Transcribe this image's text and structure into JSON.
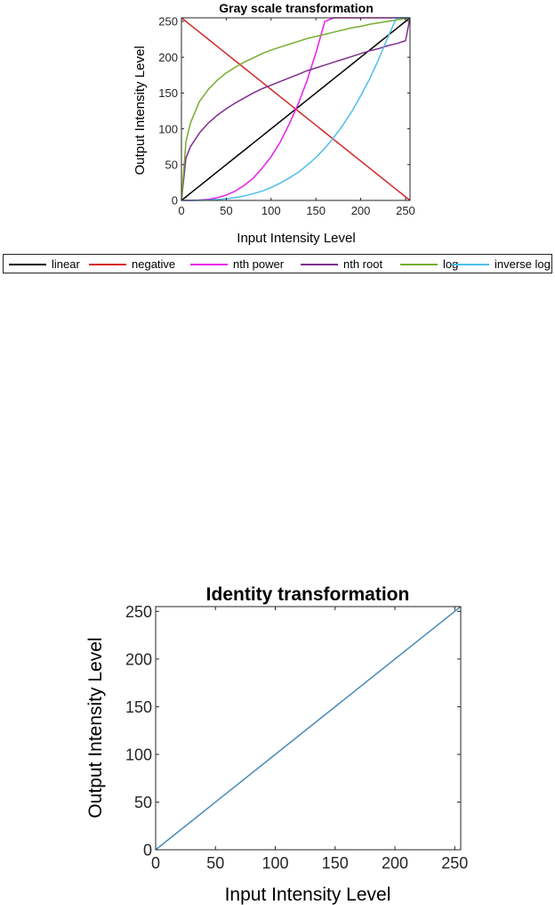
{
  "chart_data": [
    {
      "type": "line",
      "title": "Gray scale transformation",
      "xlabel": "Input Intensity Level",
      "ylabel": "Output Intensity Level",
      "xlim": [
        0,
        255
      ],
      "ylim": [
        0,
        255
      ],
      "xticks": [
        0,
        50,
        100,
        150,
        200,
        250
      ],
      "yticks": [
        0,
        50,
        100,
        150,
        200,
        250
      ],
      "grid": false,
      "legend_placement": "bottom-outside",
      "x": [
        0,
        5,
        10,
        20,
        30,
        40,
        50,
        60,
        70,
        80,
        90,
        100,
        110,
        120,
        130,
        140,
        150,
        160,
        170,
        180,
        190,
        200,
        210,
        220,
        230,
        240,
        250,
        255
      ],
      "series": [
        {
          "name": "linear",
          "color": "#000000",
          "values": [
            0,
            5,
            10,
            20,
            30,
            40,
            50,
            60,
            70,
            80,
            90,
            100,
            110,
            120,
            130,
            140,
            150,
            160,
            170,
            180,
            190,
            200,
            210,
            220,
            230,
            240,
            250,
            255
          ]
        },
        {
          "name": "negative",
          "color": "#d62728",
          "values": [
            255,
            250,
            245,
            235,
            225,
            215,
            205,
            195,
            185,
            175,
            165,
            155,
            145,
            135,
            125,
            115,
            105,
            95,
            85,
            75,
            65,
            55,
            45,
            35,
            25,
            15,
            5,
            0
          ]
        },
        {
          "name": "nth power",
          "color": "#e81ee8",
          "values": [
            0,
            0,
            0.1,
            0.5,
            1.6,
            3.8,
            7.5,
            13,
            21,
            31,
            45,
            61,
            81,
            106,
            134,
            167,
            206,
            250,
            255,
            255,
            255,
            255,
            255,
            255,
            255,
            255,
            255,
            255
          ]
        },
        {
          "name": "nth root",
          "color": "#7e2f8e",
          "values": [
            0,
            59,
            75,
            94,
            108,
            119,
            128,
            136,
            143,
            150,
            156,
            161,
            166,
            171,
            176,
            181,
            185,
            189,
            193,
            197,
            201,
            205,
            209,
            212,
            216,
            219,
            223,
            255
          ]
        },
        {
          "name": "log",
          "color": "#77ac30",
          "values": [
            0,
            82,
            108,
            138,
            155,
            168,
            178,
            186,
            193,
            199,
            205,
            210,
            214,
            218,
            222,
            226,
            229,
            232,
            235,
            238,
            241,
            243,
            246,
            248,
            250,
            252,
            254,
            255
          ]
        },
        {
          "name": "inverse log",
          "color": "#4dbeee",
          "values": [
            0,
            0,
            0,
            0.2,
            0.6,
            1.3,
            2.4,
            4,
            6.3,
            9.4,
            13,
            18,
            24,
            31,
            39,
            49,
            60,
            73,
            88,
            105,
            124,
            146,
            170,
            197,
            227,
            255,
            255,
            255
          ]
        }
      ]
    },
    {
      "type": "line",
      "title": "Identity transformation",
      "xlabel": "Input Intensity Level",
      "ylabel": "Output Intensity Level",
      "xlim": [
        0,
        255
      ],
      "ylim": [
        0,
        255
      ],
      "xticks": [
        0,
        50,
        100,
        150,
        200,
        250
      ],
      "yticks": [
        0,
        50,
        100,
        150,
        200,
        250
      ],
      "grid": false,
      "x": [
        0,
        255
      ],
      "series": [
        {
          "color": "#4a8ab8",
          "values": [
            0,
            255
          ]
        }
      ]
    }
  ]
}
